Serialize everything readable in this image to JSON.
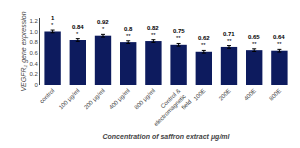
{
  "chart_data": {
    "type": "bar",
    "categories": [
      "control",
      "100 μg/ml",
      "200 μg/ml",
      "400 μg/ml",
      "800 μg/ml",
      "Control &\nelectromagnetic\nfield",
      "100E",
      "200E",
      "400E",
      "800E"
    ],
    "values": [
      1.0,
      0.84,
      0.92,
      0.8,
      0.82,
      0.75,
      0.62,
      0.71,
      0.65,
      0.64
    ],
    "errors": [
      0.025,
      0.025,
      0.025,
      0.025,
      0.025,
      0.025,
      0.025,
      0.025,
      0.025,
      0.025
    ],
    "value_labels": [
      "1",
      "0.84",
      "0.92",
      "0.8",
      "0.82",
      "0.75",
      "0.62",
      "0.71",
      "0.65",
      "0.64"
    ],
    "significance": [
      "*",
      "*",
      "*",
      "**",
      "**",
      "**",
      "**",
      "**",
      "**",
      "**"
    ],
    "data_labels": true,
    "color": "#0d1b5e",
    "xlabel": "Concentration of saffron extract μg/ml",
    "ylabel": "VEGFR₂ gene expression",
    "ylim": [
      0,
      1.25
    ],
    "yticks": [
      0,
      0.2,
      0.4,
      0.6,
      0.8,
      {
        "value": 1.0,
        "label": "1.0"
      },
      1.2
    ],
    "grid": false
  }
}
